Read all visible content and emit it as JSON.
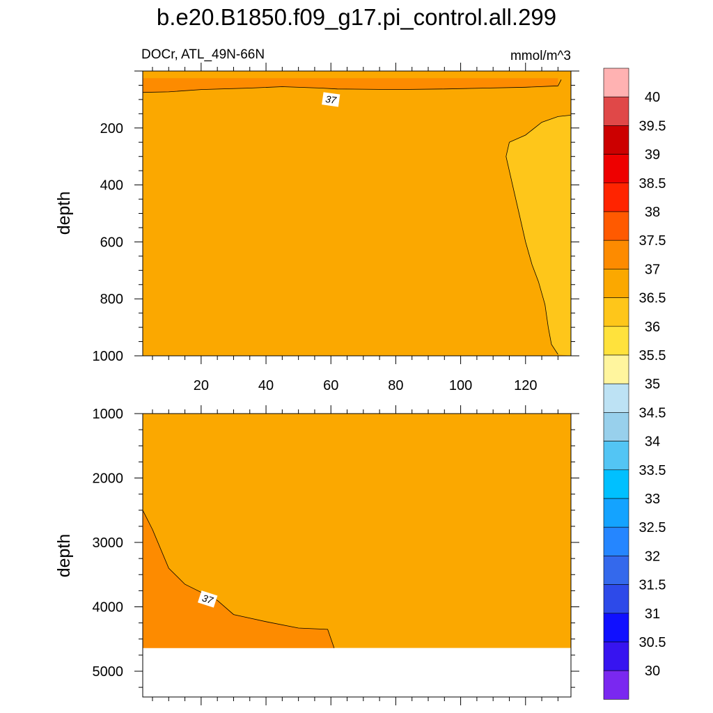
{
  "chart_data": {
    "type": "contour",
    "title": "b.e20.B1850.f09_g17.pi_control.all.299",
    "left_subtitle": "DOCr, ATL_49N-66N",
    "right_subtitle": "mmol/m^3",
    "colors": {
      "fill_36_36_5": "#fec61a",
      "fill_36_5_37": "#fba800",
      "fill_37_37_5": "#fd8b00",
      "missing": "#ffffff",
      "contour_line": "#000000"
    },
    "colorbar": {
      "labels": [
        "40",
        "39.5",
        "39",
        "38.5",
        "38",
        "37.5",
        "37",
        "36.5",
        "36",
        "35.5",
        "35",
        "34.5",
        "34",
        "33.5",
        "33",
        "32.5",
        "32",
        "31.5",
        "31",
        "30.5",
        "30"
      ],
      "colors": [
        "#ffb2b2",
        "#e04848",
        "#cc0000",
        "#ee0000",
        "#ff2400",
        "#ff5a00",
        "#fd8b00",
        "#fba800",
        "#fec61a",
        "#ffe23c",
        "#fff59e",
        "#bde2f4",
        "#98d0ec",
        "#53c5f4",
        "#00c0ff",
        "#14a3ff",
        "#2586ff",
        "#3469ec",
        "#2d4ae9",
        "#1010ff",
        "#3714f0",
        "#7a28f0"
      ]
    },
    "panels": [
      {
        "id": "upper",
        "ylabel": "depth",
        "xlim": [
          2,
          134
        ],
        "ylim": [
          0,
          1000
        ],
        "y_inverted": true,
        "xticks": [
          "20",
          "40",
          "60",
          "80",
          "100",
          "120"
        ],
        "yticks": [
          "200",
          "400",
          "600",
          "800",
          "1000"
        ],
        "contour_labels": [
          "37"
        ],
        "regions": [
          {
            "level": "37-37.5",
            "points": [
              [
                2,
                25
              ],
              [
                130,
                25
              ],
              [
                130,
                52
              ],
              [
                120,
                57
              ],
              [
                108,
                60
              ],
              [
                95,
                63
              ],
              [
                80,
                65
              ],
              [
                62,
                63
              ],
              [
                57,
                60
              ],
              [
                45,
                55
              ],
              [
                35,
                60
              ],
              [
                20,
                65
              ],
              [
                10,
                73
              ],
              [
                2,
                75
              ]
            ]
          },
          {
            "level": "36-36.5",
            "points": [
              [
                134,
                155
              ],
              [
                130,
                160
              ],
              [
                125,
                180
              ],
              [
                120,
                225
              ],
              [
                115,
                250
              ],
              [
                114,
                300
              ],
              [
                116,
                400
              ],
              [
                118,
                500
              ],
              [
                120,
                600
              ],
              [
                122,
                680
              ],
              [
                124,
                740
              ],
              [
                126,
                820
              ],
              [
                127,
                900
              ],
              [
                128,
                960
              ],
              [
                130,
                995
              ],
              [
                134,
                1000
              ]
            ]
          }
        ],
        "lines": [
          {
            "points": [
              [
                2,
                75
              ],
              [
                10,
                73
              ],
              [
                20,
                65
              ],
              [
                35,
                60
              ],
              [
                45,
                55
              ],
              [
                57,
                60
              ],
              [
                62,
                63
              ],
              [
                80,
                65
              ],
              [
                95,
                63
              ],
              [
                108,
                60
              ],
              [
                120,
                57
              ],
              [
                130,
                52
              ],
              [
                131,
                30
              ]
            ]
          },
          {
            "points": [
              [
                134,
                155
              ],
              [
                130,
                160
              ],
              [
                125,
                180
              ],
              [
                120,
                225
              ],
              [
                115,
                250
              ],
              [
                114,
                300
              ],
              [
                116,
                400
              ],
              [
                118,
                500
              ],
              [
                120,
                600
              ],
              [
                122,
                680
              ],
              [
                124,
                740
              ],
              [
                126,
                820
              ],
              [
                127,
                900
              ],
              [
                128,
                960
              ],
              [
                130,
                995
              ]
            ]
          }
        ]
      },
      {
        "id": "lower",
        "ylabel": "depth",
        "xlim": [
          2,
          134
        ],
        "ylim": [
          1000,
          5400
        ],
        "y_inverted": true,
        "xticks": [],
        "yticks": [
          "1000",
          "2000",
          "3000",
          "4000",
          "5000"
        ],
        "data_bottom": 4640,
        "contour_labels": [
          "37"
        ],
        "regions": [
          {
            "level": "37-37.5",
            "points": [
              [
                2,
                2500
              ],
              [
                5,
                2800
              ],
              [
                10,
                3400
              ],
              [
                15,
                3650
              ],
              [
                25,
                3900
              ],
              [
                30,
                4120
              ],
              [
                40,
                4230
              ],
              [
                50,
                4330
              ],
              [
                59,
                4350
              ],
              [
                61,
                4640
              ],
              [
                2,
                4640
              ]
            ]
          }
        ],
        "lines": [
          {
            "points": [
              [
                2,
                2500
              ],
              [
                5,
                2800
              ],
              [
                10,
                3400
              ],
              [
                15,
                3650
              ],
              [
                25,
                3900
              ],
              [
                30,
                4120
              ],
              [
                40,
                4230
              ],
              [
                50,
                4330
              ],
              [
                59,
                4350
              ],
              [
                61,
                4640
              ]
            ]
          }
        ]
      }
    ]
  }
}
